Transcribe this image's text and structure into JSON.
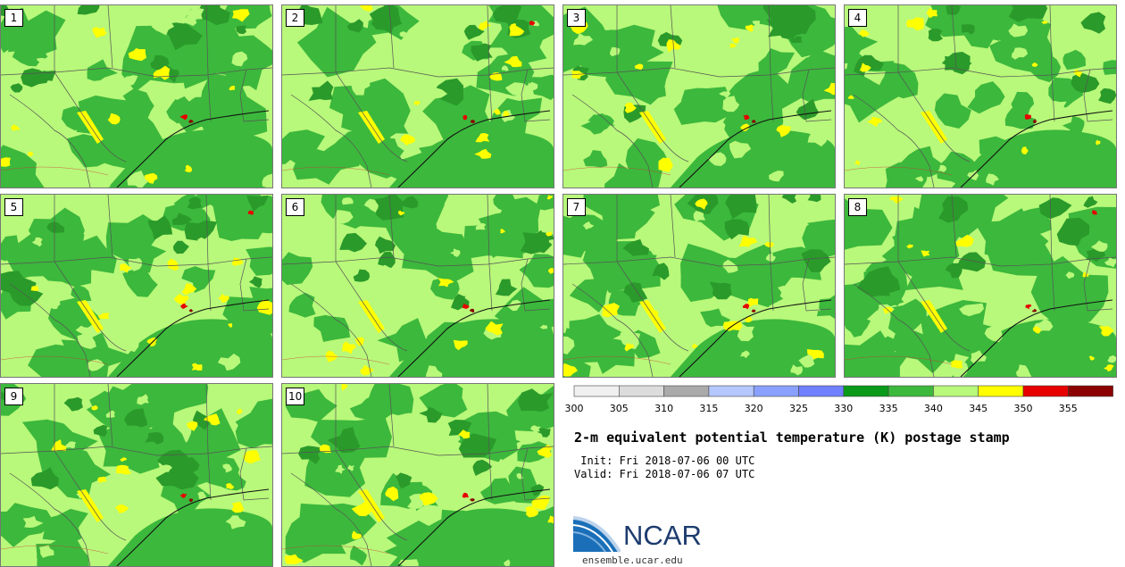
{
  "panels": [
    {
      "label": "1"
    },
    {
      "label": "2"
    },
    {
      "label": "3"
    },
    {
      "label": "4"
    },
    {
      "label": "5"
    },
    {
      "label": "6"
    },
    {
      "label": "7"
    },
    {
      "label": "8"
    },
    {
      "label": "9"
    },
    {
      "label": "10"
    }
  ],
  "colorbar": {
    "tick_labels": [
      "300",
      "305",
      "310",
      "315",
      "320",
      "325",
      "330",
      "335",
      "340",
      "345",
      "350",
      "355"
    ],
    "bins": [
      {
        "min": 300,
        "max": 305,
        "color": "#f0f0f0"
      },
      {
        "min": 305,
        "max": 310,
        "color": "#dcdcdc"
      },
      {
        "min": 310,
        "max": 315,
        "color": "#aaaaaa"
      },
      {
        "min": 315,
        "max": 320,
        "color": "#b4c8ff"
      },
      {
        "min": 320,
        "max": 325,
        "color": "#8aa0ff"
      },
      {
        "min": 325,
        "max": 330,
        "color": "#7080ff"
      },
      {
        "min": 330,
        "max": 335,
        "color": "#0a9a19"
      },
      {
        "min": 335,
        "max": 340,
        "color": "#3cb83c"
      },
      {
        "min": 340,
        "max": 345,
        "color": "#b8f87a"
      },
      {
        "min": 345,
        "max": 350,
        "color": "#ffff00"
      },
      {
        "min": 350,
        "max": 355,
        "color": "#e60000"
      },
      {
        "min": 355,
        "max": 360,
        "color": "#8b0000"
      }
    ]
  },
  "title": "2-m equivalent potential temperature (K) postage stamp",
  "init_label": " Init: Fri 2018-07-06 00 UTC",
  "valid_label": "Valid: Fri 2018-07-06 07 UTC",
  "logo": {
    "wordmark": "NCAR",
    "url": "ensemble.ucar.edu"
  },
  "colors": {
    "dark_green": "#2a9a2a",
    "mid_green": "#3cb83c",
    "light_green": "#b8f87a",
    "yellow": "#ffff00",
    "red": "#e60000",
    "dark_red": "#8b0000"
  }
}
